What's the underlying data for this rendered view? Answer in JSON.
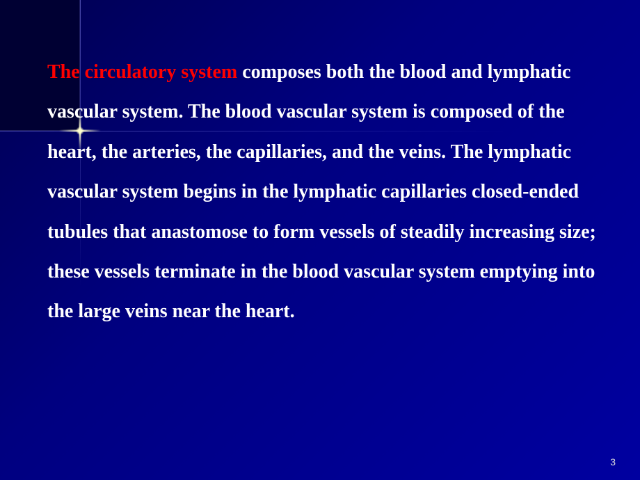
{
  "slide": {
    "highlight_text": "The circulatory system",
    "body_text": "  composes both the blood and lymphatic vascular system. The blood vascular system is composed of the heart, the arteries, the capillaries, and the veins. The lymphatic vascular system begins in the lymphatic capillaries closed-ended tubules that anastomose to form vessels of steadily increasing size; these vessels terminate in the blood vascular system emptying into the large veins near the heart.",
    "page_number": "3"
  },
  "style": {
    "background_dark": "#000033",
    "background_main": "#00008b",
    "text_color": "#ffffff",
    "highlight_color": "#ff0000",
    "font_family": "Times New Roman",
    "font_size_pt": 21,
    "font_weight": "bold",
    "line_height": 2.05,
    "flare_color": "#ffffcc",
    "page_number_color": "#dddddd"
  }
}
